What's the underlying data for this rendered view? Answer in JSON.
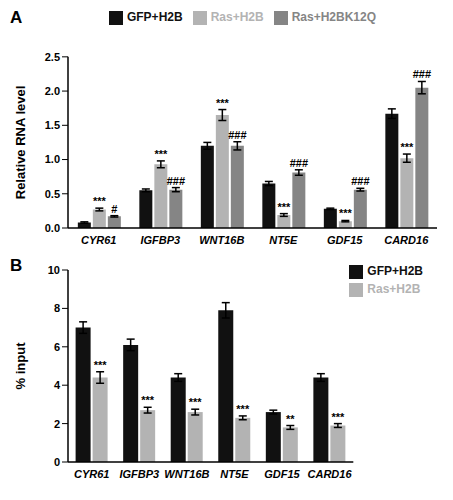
{
  "chart_data": [
    {
      "type": "bar",
      "title": "A",
      "y_label": "Relative RNA level",
      "categories": [
        "CYR61",
        "IGFBP3",
        "WNT16B",
        "NT5E",
        "GDF15",
        "CARD16"
      ],
      "series": [
        {
          "name": "GFP+H2B",
          "color": "#111111",
          "values": [
            0.08,
            0.55,
            1.2,
            0.65,
            0.28,
            1.67
          ],
          "errors": [
            0.01,
            0.02,
            0.05,
            0.03,
            0.01,
            0.07
          ]
        },
        {
          "name": "Ras+H2B",
          "color": "#b3b3b3",
          "values": [
            0.27,
            0.93,
            1.65,
            0.19,
            0.1,
            1.02
          ],
          "errors": [
            0.02,
            0.05,
            0.08,
            0.02,
            0.01,
            0.06
          ],
          "significance": [
            "***",
            "***",
            "***",
            "***",
            "***",
            "***"
          ]
        },
        {
          "name": "Ras+H2BK12Q",
          "color": "#858585",
          "values": [
            0.17,
            0.56,
            1.2,
            0.81,
            0.56,
            2.05
          ],
          "errors": [
            0.01,
            0.03,
            0.06,
            0.04,
            0.02,
            0.09
          ],
          "significance": [
            "#",
            "###",
            "###",
            "###",
            "###",
            "###"
          ]
        }
      ],
      "ylim": [
        0,
        2.5
      ],
      "yticks": [
        {
          "value": 0,
          "label": "0.0"
        },
        {
          "value": 0.5,
          "label": "0.5"
        },
        {
          "value": 1,
          "label": "1.0"
        },
        {
          "value": 1.5,
          "label": "1.5"
        },
        {
          "value": 2,
          "label": "2.0"
        },
        {
          "value": 2.5,
          "label": "2.5"
        }
      ],
      "legend": "top"
    },
    {
      "type": "bar",
      "title": "B",
      "y_label": "% input",
      "categories": [
        "CYR61",
        "IGFBP3",
        "WNT16B",
        "NT5E",
        "GDF15",
        "CARD16"
      ],
      "series": [
        {
          "name": "GFP+H2B",
          "color": "#111111",
          "values": [
            7.0,
            6.1,
            4.4,
            7.9,
            2.6,
            4.4
          ],
          "errors": [
            0.3,
            0.3,
            0.2,
            0.4,
            0.1,
            0.2
          ]
        },
        {
          "name": "Ras+H2B",
          "color": "#b3b3b3",
          "values": [
            4.4,
            2.7,
            2.6,
            2.3,
            1.8,
            1.9
          ],
          "errors": [
            0.3,
            0.15,
            0.15,
            0.1,
            0.1,
            0.1
          ],
          "significance": [
            "***",
            "***",
            "***",
            "***",
            "**",
            "***"
          ]
        }
      ],
      "ylim": [
        0,
        10
      ],
      "yticks": [
        0,
        2,
        4,
        6,
        8,
        10
      ],
      "legend": "upper right"
    }
  ]
}
